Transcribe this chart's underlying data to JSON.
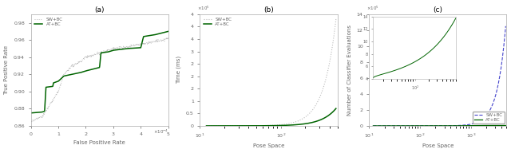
{
  "fig_width": 6.4,
  "fig_height": 1.92,
  "dpi": 100,
  "panel_a": {
    "title": "(a)",
    "xlabel": "False Positive Rate",
    "ylabel": "True Positive Rate",
    "xlabel_fontsize": 5.0,
    "ylabel_fontsize": 5.0,
    "xlim": [
      0,
      0.0005
    ],
    "ylim": [
      0.86,
      0.99
    ],
    "legend_labels": [
      "SW+BC",
      "AT+BC"
    ],
    "line1_color": "#bbbbbb",
    "line2_color": "#006400"
  },
  "panel_b": {
    "title": "(b)",
    "xlabel": "Pose Space",
    "ylabel": "Time (ms)",
    "xlabel_fontsize": 5.0,
    "ylabel_fontsize": 5.0,
    "xlim_log": [
      10,
      500
    ],
    "ylim": [
      0,
      450000.0
    ],
    "legend_labels": [
      "SW+BC",
      "AT+BC"
    ],
    "line1_color": "#bbbbbb",
    "line2_color": "#006400"
  },
  "panel_c": {
    "title": "(c)",
    "xlabel": "Pose Space",
    "ylabel": "Number of Classifier Evaluations",
    "xlabel_fontsize": 5.0,
    "ylabel_fontsize": 5.0,
    "xlim_log": [
      10,
      5000
    ],
    "ylim": [
      0,
      1400000.0
    ],
    "legend_labels": [
      "SW+BC",
      "AT+BC"
    ],
    "line1_color": "#4444cc",
    "line2_color": "#006400"
  },
  "text_color": "#666666",
  "tick_fontsize": 4.5,
  "title_fontsize": 6.5
}
